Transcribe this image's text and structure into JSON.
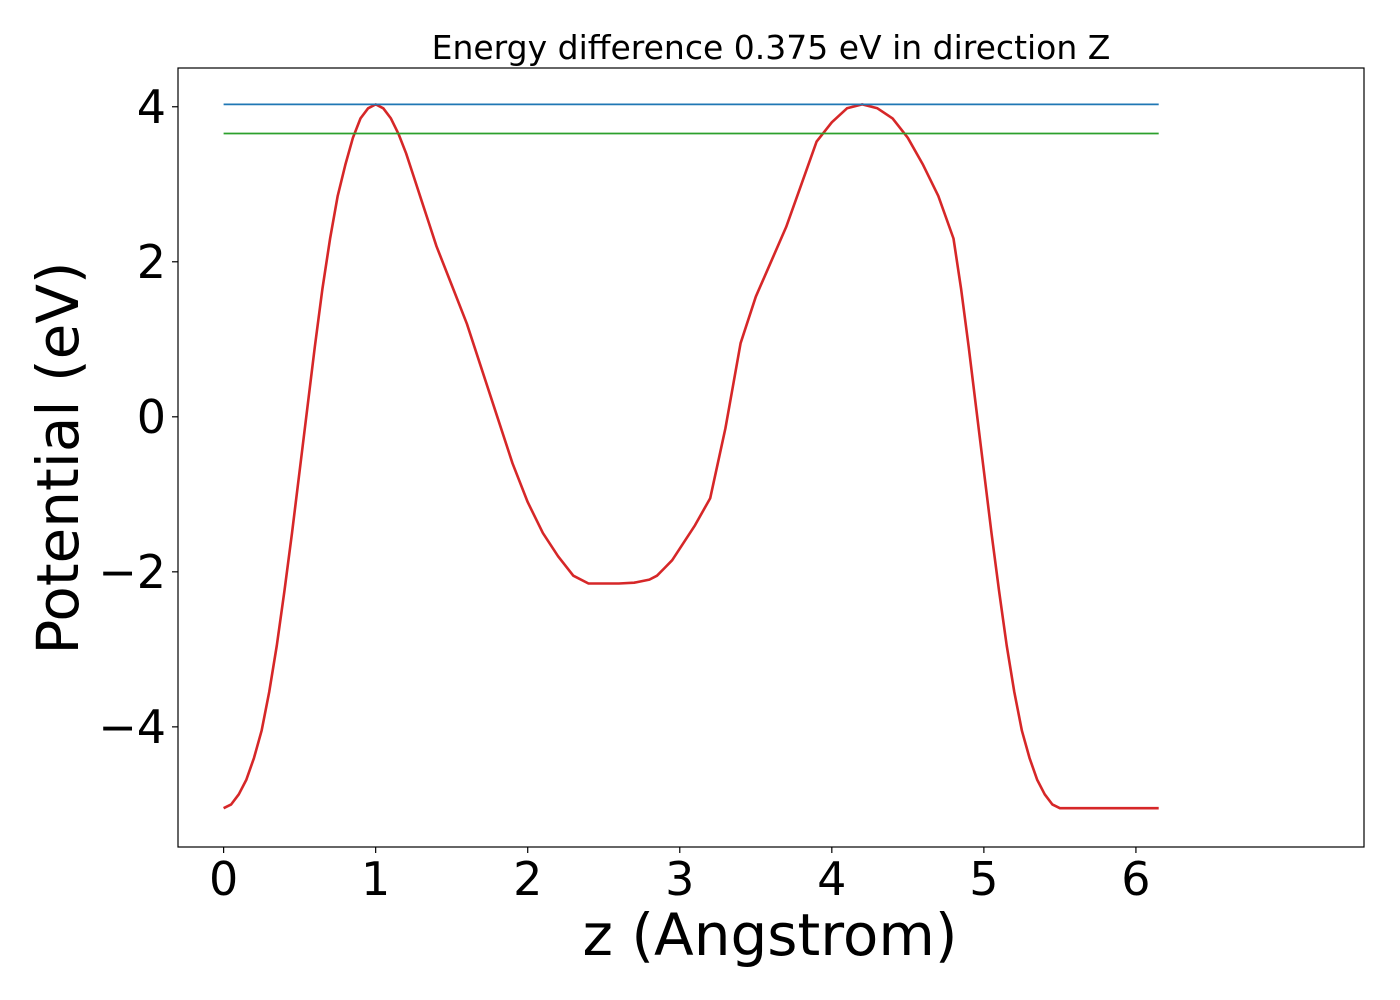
{
  "chart_data": {
    "type": "line",
    "title": "Energy difference 0.375 eV in direction Z",
    "xlabel": "z (Angstrom)",
    "ylabel": "Potential (eV)",
    "xlim": [
      -0.3,
      7.5
    ],
    "ylim": [
      -5.55,
      4.5
    ],
    "xticks": [
      0,
      1,
      2,
      3,
      4,
      5,
      6
    ],
    "xtick_labels": [
      "0",
      "1",
      "2",
      "3",
      "4",
      "5",
      "6"
    ],
    "yticks": [
      4,
      2,
      0,
      -2,
      -4
    ],
    "ytick_labels": [
      "4",
      "2",
      "0",
      "−2",
      "−4"
    ],
    "grid": false,
    "series": [
      {
        "color": "#d62728",
        "x": [
          0,
          0.05,
          0.1,
          0.15,
          0.2,
          0.25,
          0.3,
          0.35,
          0.4,
          0.45,
          0.5,
          0.55,
          0.6,
          0.65,
          0.7,
          0.75,
          0.8,
          0.85,
          0.9,
          0.95,
          1.0,
          1.05,
          1.1,
          1.15,
          1.2,
          1.25,
          1.3,
          1.35,
          1.4,
          1.5,
          1.6,
          1.7,
          1.8,
          1.9,
          2.0,
          2.1,
          2.2,
          2.3,
          2.4,
          2.5,
          2.6,
          2.7,
          2.8,
          2.85,
          2.9,
          2.95,
          3.0,
          3.1,
          3.2,
          3.25,
          3.3,
          3.35,
          3.4,
          3.5,
          3.6,
          3.7,
          3.8,
          3.9,
          4.0,
          4.1,
          4.2,
          4.3,
          4.4,
          4.5,
          4.6,
          4.7,
          4.8,
          4.85,
          4.9,
          4.95,
          5.0,
          5.05,
          5.1,
          5.15,
          5.2,
          5.25,
          5.3,
          5.35,
          5.4,
          5.45,
          5.5,
          5.55,
          5.6,
          5.65,
          5.7,
          5.75,
          5.8,
          5.85,
          5.9,
          5.95,
          6.0,
          6.05,
          6.1,
          6.15
        ],
        "y": [
          -5.05,
          -5.0,
          -4.87,
          -4.68,
          -4.4,
          -4.05,
          -3.55,
          -2.95,
          -2.25,
          -1.5,
          -0.7,
          0.1,
          0.9,
          1.65,
          2.3,
          2.85,
          3.25,
          3.6,
          3.85,
          3.98,
          4.03,
          3.98,
          3.85,
          3.65,
          3.4,
          3.1,
          2.8,
          2.5,
          2.2,
          1.7,
          1.2,
          0.6,
          0.0,
          -0.6,
          -1.1,
          -1.5,
          -1.8,
          -2.05,
          -2.15,
          -2.15,
          -2.15,
          -2.14,
          -2.1,
          -2.05,
          -1.95,
          -1.85,
          -1.7,
          -1.4,
          -1.05,
          -0.6,
          -0.15,
          0.4,
          0.95,
          1.55,
          2.0,
          2.45,
          3.0,
          3.55,
          3.8,
          3.98,
          4.03,
          3.98,
          3.85,
          3.6,
          3.25,
          2.85,
          2.3,
          1.65,
          0.9,
          0.1,
          -0.7,
          -1.5,
          -2.25,
          -2.95,
          -3.55,
          -4.05,
          -4.4,
          -4.68,
          -4.87,
          -5.0,
          -5.05,
          -5.05,
          -5.05,
          -5.05,
          -5.05,
          -5.05,
          -5.05,
          -5.05,
          -5.05,
          -5.05,
          -5.05,
          -5.05,
          -5.05,
          -5.05
        ]
      },
      {
        "color": "#1f77b4",
        "x": [
          0,
          6.15
        ],
        "y": [
          4.03,
          4.03
        ]
      },
      {
        "color": "#2ca02c",
        "x": [
          0,
          6.15
        ],
        "y": [
          3.655,
          3.655
        ]
      }
    ]
  }
}
